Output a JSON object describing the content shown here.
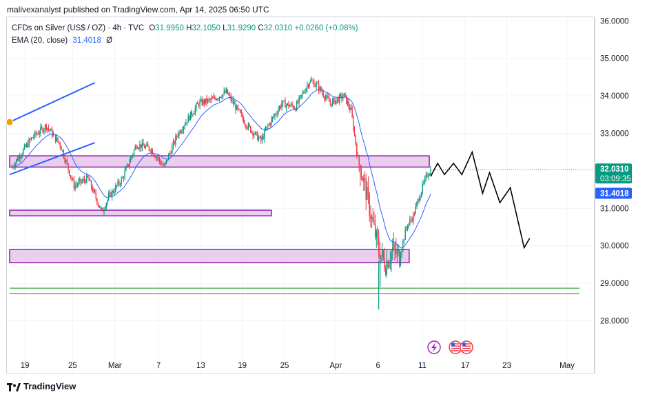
{
  "header": {
    "publisher": "malivexanalyst published on TradingView.com, Apr 14, 2025 06:50 UTC"
  },
  "legend": {
    "symbol": "CFDs on Silver (US$ / OZ) · 4h · TVC",
    "open_label": "O",
    "open": "31.9950",
    "high_label": "H",
    "high": "32.1050",
    "low_label": "L",
    "low": "31.9290",
    "close_label": "C",
    "close": "32.0310",
    "change": "+0.0260 (+0.08%)",
    "ema_label": "EMA (20, close)",
    "ema_value": "31.4018",
    "ema_suffix": "Ø"
  },
  "footer": {
    "brand": "TradingView"
  },
  "colors": {
    "up": "#089981",
    "down": "#f23645",
    "ema": "#2962ff",
    "zone_fill": "#e1bee7",
    "zone_border": "#9c27b0",
    "trend": "#2962ff",
    "support_line": "#4caf50",
    "projection": "#000000"
  },
  "chart_data": {
    "type": "candlestick",
    "title": "",
    "ylim": [
      27.4,
      36.0
    ],
    "yticks": [
      "36.0000",
      "35.0000",
      "34.0000",
      "33.0000",
      "31.0000",
      "30.0000",
      "29.0000",
      "28.0000"
    ],
    "xticks": [
      "19",
      "25",
      "Mar",
      "7",
      "13",
      "19",
      "25",
      "Apr",
      "6",
      "11",
      "17",
      "23",
      "May"
    ],
    "price_labels": {
      "last": "32.0310",
      "countdown": "03:09:35",
      "ema": "31.4018"
    },
    "anchors": [
      {
        "d": 0,
        "p": 32.1
      },
      {
        "d": 3,
        "p": 32.9
      },
      {
        "d": 5,
        "p": 33.2
      },
      {
        "d": 7,
        "p": 32.7
      },
      {
        "d": 9,
        "p": 31.6
      },
      {
        "d": 11,
        "p": 31.8
      },
      {
        "d": 13,
        "p": 30.9
      },
      {
        "d": 14,
        "p": 31.3
      },
      {
        "d": 16,
        "p": 31.8
      },
      {
        "d": 18,
        "p": 32.7
      },
      {
        "d": 20,
        "p": 32.6
      },
      {
        "d": 22,
        "p": 32.1
      },
      {
        "d": 24,
        "p": 33.0
      },
      {
        "d": 27,
        "p": 33.8
      },
      {
        "d": 29,
        "p": 33.9
      },
      {
        "d": 31,
        "p": 34.1
      },
      {
        "d": 32,
        "p": 33.8
      },
      {
        "d": 34,
        "p": 33.2
      },
      {
        "d": 36,
        "p": 32.8
      },
      {
        "d": 37,
        "p": 33.2
      },
      {
        "d": 39,
        "p": 33.8
      },
      {
        "d": 41,
        "p": 33.7
      },
      {
        "d": 43,
        "p": 34.4
      },
      {
        "d": 44,
        "p": 34.3
      },
      {
        "d": 46,
        "p": 33.8
      },
      {
        "d": 48,
        "p": 34.0
      },
      {
        "d": 49,
        "p": 33.6
      },
      {
        "d": 50,
        "p": 32.3
      },
      {
        "d": 51,
        "p": 31.6
      },
      {
        "d": 52,
        "p": 30.7
      },
      {
        "d": 53,
        "p": 29.9
      },
      {
        "d": 54,
        "p": 29.5
      },
      {
        "d": 55,
        "p": 29.9
      },
      {
        "d": 56,
        "p": 29.7
      },
      {
        "d": 57,
        "p": 30.5
      },
      {
        "d": 58,
        "p": 30.8
      },
      {
        "d": 59,
        "p": 31.4
      },
      {
        "d": 60,
        "p": 31.9
      },
      {
        "d": 60.5,
        "p": 32.03
      }
    ],
    "events": [
      {
        "kind": "spike_low",
        "d": 53,
        "p": 28.3
      },
      {
        "kind": "spike_low",
        "d": 53.2,
        "p": 28.9
      }
    ],
    "zones": [
      {
        "d0": -0.3,
        "d1": 60.3,
        "p0": 32.1,
        "p1": 32.4
      },
      {
        "d0": -0.3,
        "d1": 37.5,
        "p0": 30.8,
        "p1": 30.95
      },
      {
        "d0": -0.3,
        "d1": 57.4,
        "p0": 29.55,
        "p1": 29.9
      }
    ],
    "support_lines": [
      {
        "d0": -0.3,
        "d1": 82,
        "p": 28.87
      },
      {
        "d0": -0.3,
        "d1": 82,
        "p": 28.73
      }
    ],
    "trendlines": [
      {
        "d0": -0.3,
        "p0": 33.3,
        "d1": 12,
        "p1": 34.35
      },
      {
        "d0": -0.3,
        "p0": 31.9,
        "d1": 12,
        "p1": 32.75
      }
    ],
    "projection": [
      {
        "d": 60.5,
        "p": 31.85
      },
      {
        "d": 61.5,
        "p": 32.2
      },
      {
        "d": 62.5,
        "p": 31.9
      },
      {
        "d": 63.8,
        "p": 32.2
      },
      {
        "d": 65,
        "p": 31.9
      },
      {
        "d": 66.5,
        "p": 32.5
      },
      {
        "d": 68,
        "p": 31.4
      },
      {
        "d": 69,
        "p": 31.95
      },
      {
        "d": 70.5,
        "p": 31.15
      },
      {
        "d": 72,
        "p": 31.55
      },
      {
        "d": 74,
        "p": 29.95
      },
      {
        "d": 74.8,
        "p": 30.2
      }
    ]
  }
}
